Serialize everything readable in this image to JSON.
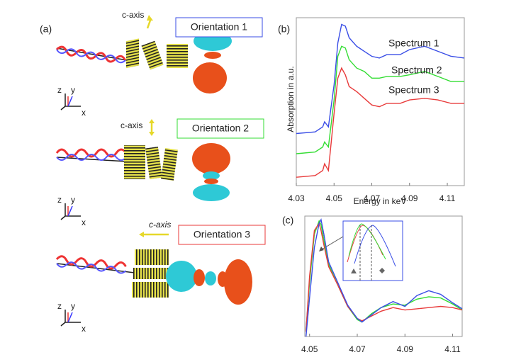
{
  "figure": {
    "panel_label": "(a)",
    "orientations": [
      {
        "c_axis": "c-axis",
        "title": "Orientation 1",
        "axes": {
          "z": "z",
          "y": "y",
          "x": "x"
        }
      },
      {
        "c_axis": "c-axis",
        "title": "Orientation 2",
        "axes": {
          "z": "z",
          "y": "y",
          "x": "x"
        }
      },
      {
        "c_axis": "c-axis",
        "title": "Orientation 3",
        "axes": {
          "z": "z",
          "y": "y",
          "x": "x"
        }
      }
    ]
  },
  "chart_data": [
    {
      "type": "line",
      "title": "(b)",
      "xlabel": "Energy in keV",
      "ylabel": "Absorption  in  a.u.",
      "x": [
        4.03,
        4.04,
        4.044,
        4.045,
        4.047,
        4.05,
        4.052,
        4.054,
        4.056,
        4.058,
        4.062,
        4.066,
        4.07,
        4.074,
        4.078,
        4.085,
        4.09,
        4.098,
        4.105,
        4.112,
        4.119
      ],
      "xlim": [
        4.03,
        4.119
      ],
      "xticks": [
        4.03,
        4.05,
        4.07,
        4.09,
        4.11
      ],
      "ylim": [
        0,
        1
      ],
      "series": [
        {
          "name": "Spectrum 1",
          "color": "#3a4ee6",
          "values": [
            0.31,
            0.32,
            0.35,
            0.38,
            0.35,
            0.6,
            0.85,
            0.96,
            0.95,
            0.88,
            0.83,
            0.8,
            0.77,
            0.76,
            0.78,
            0.78,
            0.81,
            0.83,
            0.8,
            0.77,
            0.76
          ]
        },
        {
          "name": "Spectrum 2",
          "color": "#33dd33",
          "values": [
            0.19,
            0.2,
            0.23,
            0.26,
            0.23,
            0.51,
            0.77,
            0.83,
            0.82,
            0.75,
            0.7,
            0.68,
            0.64,
            0.64,
            0.65,
            0.65,
            0.66,
            0.68,
            0.65,
            0.62,
            0.62
          ]
        },
        {
          "name": "Spectrum 3",
          "color": "#e83a3a",
          "values": [
            0.05,
            0.06,
            0.09,
            0.13,
            0.09,
            0.43,
            0.64,
            0.7,
            0.66,
            0.59,
            0.56,
            0.52,
            0.48,
            0.47,
            0.49,
            0.49,
            0.51,
            0.52,
            0.51,
            0.49,
            0.49
          ]
        }
      ]
    },
    {
      "type": "line",
      "title": "(c)",
      "x": [
        4.0485,
        4.05,
        4.052,
        4.054,
        4.0548,
        4.056,
        4.058,
        4.062,
        4.066,
        4.07,
        4.072,
        4.076,
        4.08,
        4.085,
        4.09,
        4.095,
        4.1,
        4.105,
        4.11,
        4.114
      ],
      "xlim": [
        4.048,
        4.114
      ],
      "xticks": [
        4.05,
        4.07,
        4.09,
        4.11
      ],
      "ylim": [
        0,
        1
      ],
      "series": [
        {
          "color": "#33dd33",
          "values": [
            0.05,
            0.45,
            0.85,
            0.96,
            0.93,
            0.8,
            0.6,
            0.42,
            0.25,
            0.14,
            0.12,
            0.19,
            0.24,
            0.27,
            0.26,
            0.31,
            0.33,
            0.32,
            0.27,
            0.22
          ]
        },
        {
          "color": "#e83a3a",
          "values": [
            0.04,
            0.5,
            0.88,
            0.94,
            0.88,
            0.76,
            0.58,
            0.42,
            0.25,
            0.15,
            0.13,
            0.17,
            0.21,
            0.24,
            0.22,
            0.23,
            0.24,
            0.25,
            0.24,
            0.22
          ]
        },
        {
          "color": "#3a4ee6",
          "values": [
            0,
            0.32,
            0.74,
            0.94,
            0.97,
            0.85,
            0.62,
            0.44,
            0.26,
            0.15,
            0.12,
            0.18,
            0.24,
            0.29,
            0.25,
            0.34,
            0.38,
            0.35,
            0.28,
            0.23
          ]
        }
      ]
    }
  ]
}
